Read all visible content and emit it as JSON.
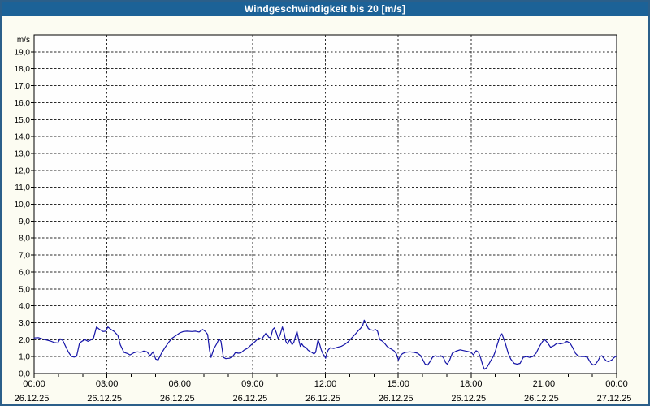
{
  "window": {
    "title": "Windgeschwindigkeit bis 20 [m/s]"
  },
  "colors": {
    "titlebar_bg": "#1c6297",
    "titlebar_text": "#ffffff",
    "window_border": "#2b5f8a",
    "window_bg": "#fcfcf2",
    "plot_bg": "#fefefe",
    "plot_border": "#000000",
    "grid": "#2a2a2a",
    "line": "#1413a7",
    "text": "#000000"
  },
  "chart_data": {
    "type": "line",
    "title": "Windgeschwindigkeit bis 20 [m/s]",
    "ylabel": "m/s",
    "xlabel": "",
    "ylim": [
      0,
      20
    ],
    "xlim_hours": [
      0,
      24
    ],
    "grid": true,
    "y_tick_step": 1,
    "y_tick_labels": [
      "0,0",
      "1,0",
      "2,0",
      "3,0",
      "4,0",
      "5,0",
      "6,0",
      "7,0",
      "8,0",
      "9,0",
      "10,0",
      "11,0",
      "12,0",
      "13,0",
      "14,0",
      "15,0",
      "16,0",
      "17,0",
      "18,0",
      "19,0"
    ],
    "x_minor_tick_hours": 1,
    "x_major_tick_hours": 3,
    "x_ticks": [
      {
        "hour": 0,
        "time": "00:00",
        "date": "26.12.25"
      },
      {
        "hour": 3,
        "time": "03:00",
        "date": "26.12.25"
      },
      {
        "hour": 6,
        "time": "06:00",
        "date": "26.12.25"
      },
      {
        "hour": 9,
        "time": "09:00",
        "date": "26.12.25"
      },
      {
        "hour": 12,
        "time": "12:00",
        "date": "26.12.25"
      },
      {
        "hour": 15,
        "time": "15:00",
        "date": "26.12.25"
      },
      {
        "hour": 18,
        "time": "18:00",
        "date": "26.12.25"
      },
      {
        "hour": 21,
        "time": "21:00",
        "date": "26.12.25"
      },
      {
        "hour": 24,
        "time": "00:00",
        "date": "27.12.25"
      }
    ],
    "series": [
      {
        "color": "#1413a7",
        "points": [
          [
            0.0,
            2.1
          ],
          [
            0.17,
            2.12
          ],
          [
            0.33,
            2.05
          ],
          [
            0.5,
            1.98
          ],
          [
            0.67,
            1.92
          ],
          [
            0.83,
            1.83
          ],
          [
            0.97,
            1.8
          ],
          [
            1.07,
            2.05
          ],
          [
            1.18,
            1.95
          ],
          [
            1.3,
            1.6
          ],
          [
            1.42,
            1.25
          ],
          [
            1.54,
            1.0
          ],
          [
            1.65,
            0.97
          ],
          [
            1.75,
            1.02
          ],
          [
            1.87,
            1.8
          ],
          [
            2.0,
            1.93
          ],
          [
            2.1,
            2.0
          ],
          [
            2.22,
            1.9
          ],
          [
            2.33,
            1.98
          ],
          [
            2.45,
            2.1
          ],
          [
            2.57,
            2.75
          ],
          [
            2.7,
            2.6
          ],
          [
            2.84,
            2.48
          ],
          [
            2.95,
            2.5
          ],
          [
            3.04,
            2.75
          ],
          [
            3.15,
            2.62
          ],
          [
            3.3,
            2.48
          ],
          [
            3.45,
            2.25
          ],
          [
            3.55,
            1.7
          ],
          [
            3.7,
            1.25
          ],
          [
            3.85,
            1.18
          ],
          [
            3.95,
            1.1
          ],
          [
            4.1,
            1.22
          ],
          [
            4.25,
            1.28
          ],
          [
            4.4,
            1.25
          ],
          [
            4.52,
            1.33
          ],
          [
            4.65,
            1.28
          ],
          [
            4.78,
            1.05
          ],
          [
            4.9,
            1.28
          ],
          [
            5.01,
            0.85
          ],
          [
            5.11,
            0.8
          ],
          [
            5.25,
            1.2
          ],
          [
            5.4,
            1.55
          ],
          [
            5.55,
            1.85
          ],
          [
            5.7,
            2.1
          ],
          [
            5.85,
            2.25
          ],
          [
            6.0,
            2.4
          ],
          [
            6.15,
            2.48
          ],
          [
            6.3,
            2.5
          ],
          [
            6.5,
            2.48
          ],
          [
            6.65,
            2.5
          ],
          [
            6.8,
            2.45
          ],
          [
            6.95,
            2.6
          ],
          [
            7.06,
            2.48
          ],
          [
            7.15,
            2.3
          ],
          [
            7.23,
            1.35
          ],
          [
            7.29,
            0.95
          ],
          [
            7.4,
            1.45
          ],
          [
            7.52,
            1.75
          ],
          [
            7.62,
            2.05
          ],
          [
            7.7,
            1.9
          ],
          [
            7.8,
            0.95
          ],
          [
            7.9,
            0.88
          ],
          [
            8.05,
            0.9
          ],
          [
            8.18,
            1.0
          ],
          [
            8.3,
            1.25
          ],
          [
            8.4,
            1.2
          ],
          [
            8.52,
            1.22
          ],
          [
            8.65,
            1.38
          ],
          [
            8.8,
            1.5
          ],
          [
            8.95,
            1.7
          ],
          [
            9.1,
            1.88
          ],
          [
            9.25,
            2.1
          ],
          [
            9.38,
            2.02
          ],
          [
            9.46,
            2.2
          ],
          [
            9.56,
            2.4
          ],
          [
            9.66,
            2.15
          ],
          [
            9.74,
            2.1
          ],
          [
            9.83,
            2.6
          ],
          [
            9.9,
            2.7
          ],
          [
            9.98,
            2.4
          ],
          [
            10.06,
            2.05
          ],
          [
            10.14,
            2.3
          ],
          [
            10.23,
            2.75
          ],
          [
            10.3,
            2.4
          ],
          [
            10.37,
            1.9
          ],
          [
            10.44,
            1.75
          ],
          [
            10.53,
            2.0
          ],
          [
            10.63,
            1.7
          ],
          [
            10.7,
            1.85
          ],
          [
            10.83,
            2.5
          ],
          [
            10.9,
            2.0
          ],
          [
            10.97,
            1.6
          ],
          [
            11.03,
            1.75
          ],
          [
            11.1,
            1.6
          ],
          [
            11.2,
            1.55
          ],
          [
            11.27,
            1.4
          ],
          [
            11.36,
            1.3
          ],
          [
            11.44,
            1.25
          ],
          [
            11.53,
            1.15
          ],
          [
            11.6,
            1.25
          ],
          [
            11.7,
            2.0
          ],
          [
            11.77,
            1.7
          ],
          [
            11.83,
            1.4
          ],
          [
            11.9,
            1.15
          ],
          [
            11.96,
            1.05
          ],
          [
            12.01,
            0.9
          ],
          [
            12.05,
            1.15
          ],
          [
            12.12,
            1.4
          ],
          [
            12.2,
            1.52
          ],
          [
            12.35,
            1.48
          ],
          [
            12.5,
            1.55
          ],
          [
            12.65,
            1.6
          ],
          [
            12.8,
            1.72
          ],
          [
            12.92,
            1.85
          ],
          [
            13.05,
            2.05
          ],
          [
            13.15,
            2.2
          ],
          [
            13.25,
            2.35
          ],
          [
            13.37,
            2.55
          ],
          [
            13.47,
            2.7
          ],
          [
            13.54,
            2.85
          ],
          [
            13.6,
            3.15
          ],
          [
            13.68,
            2.95
          ],
          [
            13.77,
            2.65
          ],
          [
            13.87,
            2.58
          ],
          [
            13.97,
            2.55
          ],
          [
            14.07,
            2.6
          ],
          [
            14.15,
            2.5
          ],
          [
            14.24,
            2.0
          ],
          [
            14.34,
            1.92
          ],
          [
            14.44,
            1.78
          ],
          [
            14.54,
            1.6
          ],
          [
            14.64,
            1.5
          ],
          [
            14.74,
            1.42
          ],
          [
            14.84,
            1.33
          ],
          [
            14.93,
            1.15
          ],
          [
            15.01,
            0.8
          ],
          [
            15.09,
            1.05
          ],
          [
            15.18,
            1.18
          ],
          [
            15.3,
            1.25
          ],
          [
            15.48,
            1.28
          ],
          [
            15.65,
            1.25
          ],
          [
            15.8,
            1.2
          ],
          [
            15.93,
            1.05
          ],
          [
            16.02,
            0.8
          ],
          [
            16.11,
            0.55
          ],
          [
            16.21,
            0.5
          ],
          [
            16.31,
            0.7
          ],
          [
            16.41,
            0.95
          ],
          [
            16.52,
            1.05
          ],
          [
            16.65,
            1.0
          ],
          [
            16.76,
            1.05
          ],
          [
            16.86,
            0.95
          ],
          [
            16.95,
            0.65
          ],
          [
            17.02,
            0.55
          ],
          [
            17.12,
            0.8
          ],
          [
            17.23,
            1.2
          ],
          [
            17.38,
            1.32
          ],
          [
            17.55,
            1.4
          ],
          [
            17.72,
            1.35
          ],
          [
            17.88,
            1.3
          ],
          [
            18.0,
            1.25
          ],
          [
            18.1,
            1.1
          ],
          [
            18.21,
            1.35
          ],
          [
            18.31,
            1.25
          ],
          [
            18.4,
            0.9
          ],
          [
            18.48,
            0.5
          ],
          [
            18.55,
            0.25
          ],
          [
            18.65,
            0.35
          ],
          [
            18.75,
            0.6
          ],
          [
            18.85,
            0.85
          ],
          [
            18.92,
            1.0
          ],
          [
            19.0,
            1.3
          ],
          [
            19.08,
            1.7
          ],
          [
            19.17,
            2.1
          ],
          [
            19.27,
            2.35
          ],
          [
            19.4,
            1.85
          ],
          [
            19.53,
            1.2
          ],
          [
            19.64,
            0.85
          ],
          [
            19.78,
            0.6
          ],
          [
            19.9,
            0.55
          ],
          [
            20.02,
            0.6
          ],
          [
            20.15,
            0.95
          ],
          [
            20.28,
            1.0
          ],
          [
            20.42,
            0.95
          ],
          [
            20.55,
            1.0
          ],
          [
            20.68,
            1.2
          ],
          [
            20.82,
            1.6
          ],
          [
            20.95,
            1.9
          ],
          [
            21.04,
            2.0
          ],
          [
            21.16,
            1.8
          ],
          [
            21.28,
            1.55
          ],
          [
            21.42,
            1.65
          ],
          [
            21.55,
            1.8
          ],
          [
            21.68,
            1.75
          ],
          [
            21.82,
            1.8
          ],
          [
            21.95,
            1.9
          ],
          [
            22.08,
            1.8
          ],
          [
            22.2,
            1.5
          ],
          [
            22.3,
            1.2
          ],
          [
            22.4,
            1.05
          ],
          [
            22.53,
            1.0
          ],
          [
            22.67,
            1.0
          ],
          [
            22.8,
            0.95
          ],
          [
            22.92,
            0.65
          ],
          [
            23.03,
            0.5
          ],
          [
            23.13,
            0.55
          ],
          [
            23.23,
            0.75
          ],
          [
            23.32,
            1.0
          ],
          [
            23.39,
            1.05
          ],
          [
            23.47,
            0.9
          ],
          [
            23.57,
            0.75
          ],
          [
            23.67,
            0.7
          ],
          [
            23.8,
            0.8
          ],
          [
            23.9,
            0.95
          ],
          [
            24.0,
            1.05
          ]
        ]
      }
    ]
  }
}
